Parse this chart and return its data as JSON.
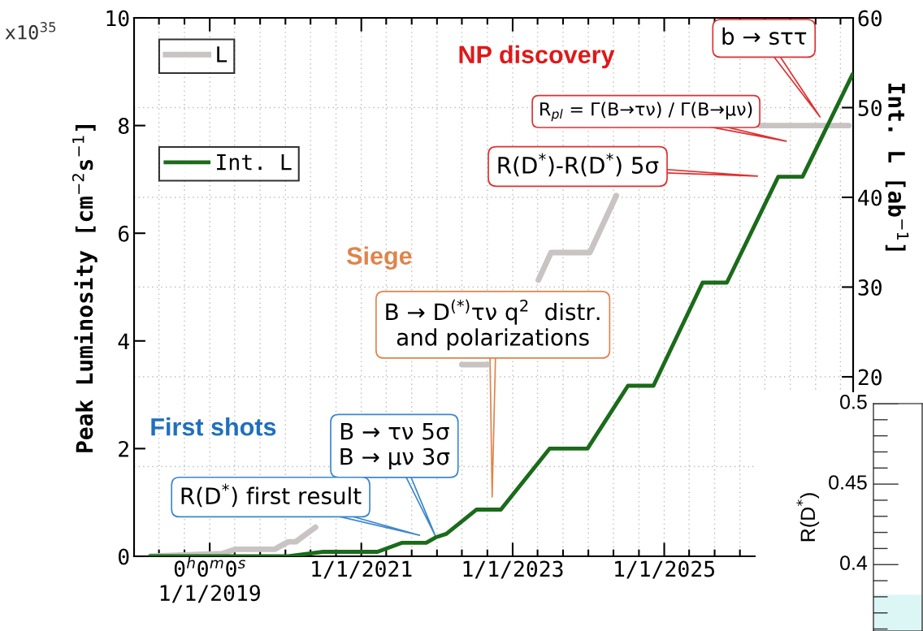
{
  "chart_data": [
    {
      "type": "line",
      "ylabel": "Peak Luminosity [cm$^{−2}$s$^{−1}$]",
      "y2label": "Int. L [ab$^{−1}$]",
      "xlim": [
        "2018-01-01",
        "2027-07-01"
      ],
      "xticks": [
        {
          "value": "2018-05-01",
          "label": null
        },
        {
          "value": "2018-09-01",
          "label": null
        },
        {
          "value": "2019-01-01",
          "label": "0$^{h}$0$^{m}$0$^{s}$\n1/1/2019"
        },
        {
          "value": "2019-05-01",
          "label": null
        },
        {
          "value": "2019-09-01",
          "label": null
        },
        {
          "value": "2020-01-01",
          "label": null
        },
        {
          "value": "2020-05-01",
          "label": null
        },
        {
          "value": "2020-09-01",
          "label": null
        },
        {
          "value": "2021-01-01",
          "label": "1/1/2021"
        },
        {
          "value": "2021-05-01",
          "label": null
        },
        {
          "value": "2021-09-01",
          "label": null
        },
        {
          "value": "2022-01-01",
          "label": null
        },
        {
          "value": "2022-05-01",
          "label": null
        },
        {
          "value": "2022-09-01",
          "label": null
        },
        {
          "value": "2023-01-01",
          "label": "1/1/2023"
        },
        {
          "value": "2023-05-01",
          "label": null
        },
        {
          "value": "2023-09-01",
          "label": null
        },
        {
          "value": "2024-01-01",
          "label": null
        },
        {
          "value": "2024-05-01",
          "label": null
        },
        {
          "value": "2024-09-01",
          "label": null
        },
        {
          "value": "2025-01-01",
          "label": "1/1/2025"
        },
        {
          "value": "2025-05-01",
          "label": null
        },
        {
          "value": "2025-09-01",
          "label": null
        },
        {
          "value": "2026-01-01",
          "label": null
        },
        {
          "value": "2026-05-01",
          "label": null
        },
        {
          "value": "2026-09-01",
          "label": null
        },
        {
          "value": "2027-01-01",
          "label": null
        },
        {
          "value": "2027-05-01",
          "label": null
        }
      ],
      "ylim": [
        0,
        10
      ],
      "yticks": [
        0,
        2,
        4,
        6,
        8,
        10
      ],
      "y2lim": [
        0,
        60
      ],
      "y2ticks": [
        {
          "value": 10,
          "label": null
        },
        20,
        30,
        40,
        50,
        60
      ],
      "grid": true,
      "legend": "top left",
      "series": [
        {
          "name": "L",
          "color": "#c9c3c3",
          "x": [
            "2018-03-20",
            "2019-03-01",
            "2019-05-05",
            "2019-11-10",
            "2020-01-15",
            "2020-02-20",
            "2020-05-25",
            "2021-06-01",
            "2022-05-01",
            "2022-09-01",
            "2022-12-01",
            "2023-05-05",
            "2023-07-05",
            "2024-01-08",
            "2024-05-15",
            "2025-06-01",
            "2026-04-05",
            "2027-06-10"
          ],
          "values": [
            0,
            0.05,
            0.13,
            0.13,
            0.27,
            0.27,
            0.54,
            null,
            3.56,
            3.56,
            null,
            5.13,
            5.64,
            5.64,
            6.7,
            null,
            8.0,
            8.0
          ]
        },
        {
          "name": "Int. L",
          "color": "#1a6b1a",
          "axis": "y2",
          "x": [
            "2018-03-20",
            "2020-01-15",
            "2020-07-01",
            "2021-03-20",
            "2021-07-15",
            "2021-11-10",
            "2021-12-25",
            "2022-02-15",
            "2022-07-10",
            "2022-11-05",
            "2023-06-28",
            "2023-12-28",
            "2024-07-10",
            "2024-11-10",
            "2025-07-05",
            "2025-10-30",
            "2026-07-05",
            "2026-10-30",
            "2027-06-28"
          ],
          "values": [
            0,
            0,
            0.5,
            0.5,
            1.5,
            1.5,
            2.1,
            2.5,
            5.2,
            5.2,
            12.0,
            12.0,
            19.0,
            19.0,
            30.5,
            30.5,
            42.3,
            42.3,
            53.7
          ]
        }
      ],
      "annotations": [
        "x10$^{35}$",
        "NP discovery",
        "Siege",
        "First shots",
        "b → sττ",
        "R$_{pl}$ = Γ(B→τν) / Γ(B→μν)",
        "R(D$^{*}$)-R(D$^{*}$) 5σ",
        "B → D$^{(*)}$τν q$^{2}$  distr.\nand polarizations",
        "B → τν 5σ\nB → μν 3σ",
        "R(D$^{*}$) first result"
      ]
    },
    {
      "type": "other",
      "ylabel": "R(D$^{*}$)",
      "annotations": [
        "0.5",
        "0.45",
        "0.4"
      ]
    }
  ]
}
